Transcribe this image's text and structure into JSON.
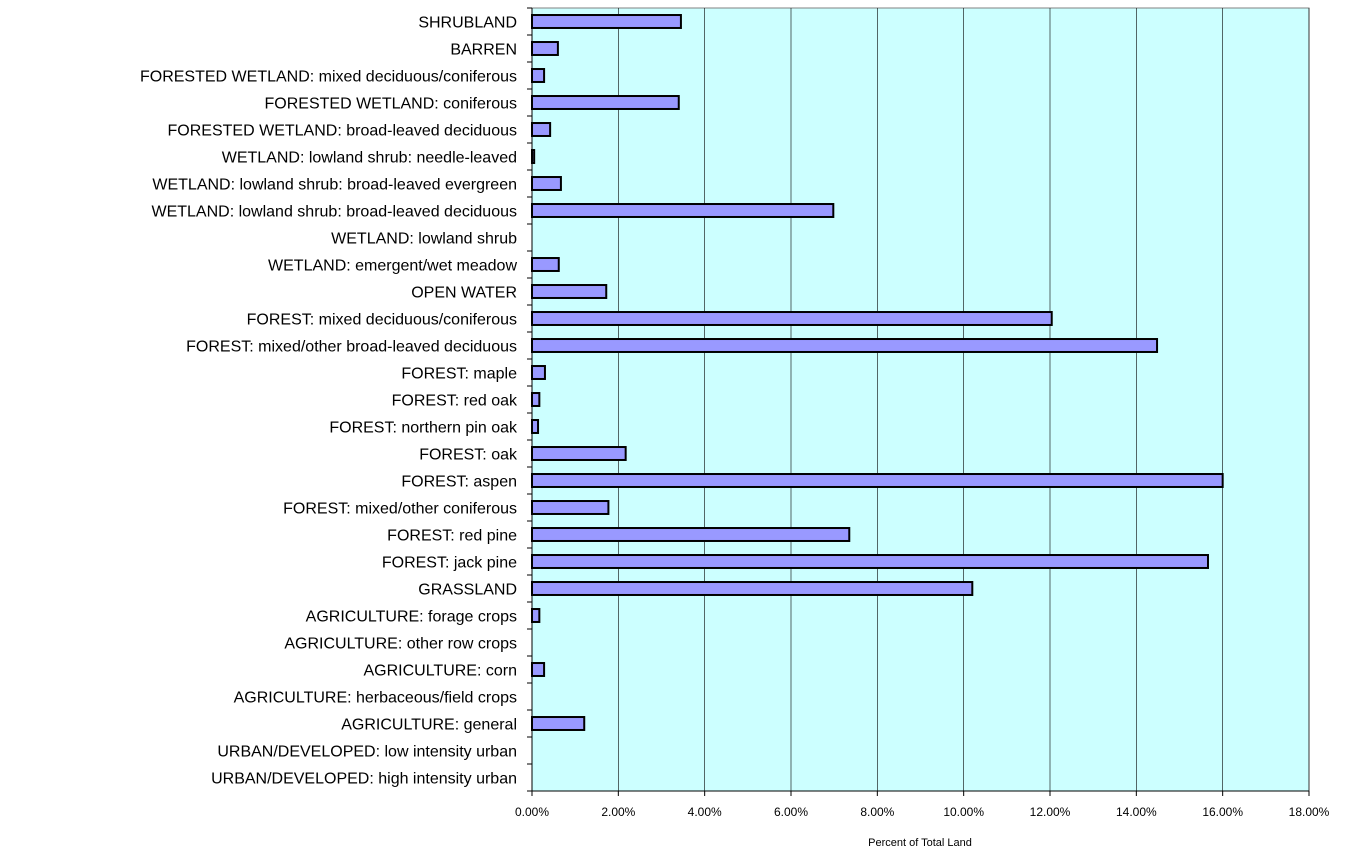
{
  "chart_data": {
    "type": "bar",
    "orientation": "horizontal",
    "title": "",
    "xlabel": "Percent of Total Land",
    "ylabel": "",
    "xlim": [
      0,
      18
    ],
    "x_ticks": [
      "0.00%",
      "2.00%",
      "4.00%",
      "6.00%",
      "8.00%",
      "10.00%",
      "12.00%",
      "14.00%",
      "16.00%",
      "18.00%"
    ],
    "grid": "vertical",
    "legend": "none",
    "categories": [
      "SHRUBLAND",
      "BARREN",
      "FORESTED WETLAND: mixed deciduous/coniferous",
      "FORESTED WETLAND: coniferous",
      "FORESTED WETLAND: broad-leaved deciduous",
      "WETLAND: lowland shrub: needle-leaved",
      "WETLAND: lowland shrub: broad-leaved evergreen",
      "WETLAND: lowland shrub: broad-leaved deciduous",
      "WETLAND: lowland shrub",
      "WETLAND: emergent/wet meadow",
      "OPEN WATER",
      "FOREST: mixed deciduous/coniferous",
      "FOREST: mixed/other broad-leaved deciduous",
      "FOREST: maple",
      "FOREST: red oak",
      "FOREST: northern pin oak",
      "FOREST: oak",
      "FOREST: aspen",
      "FOREST: mixed/other coniferous",
      "FOREST: red pine",
      "FOREST: jack pine",
      "GRASSLAND",
      "AGRICULTURE: forage crops",
      "AGRICULTURE: other row crops",
      "AGRICULTURE: corn",
      "AGRICULTURE: herbaceous/field crops",
      "AGRICULTURE: general",
      "URBAN/DEVELOPED: low intensity urban",
      "URBAN/DEVELOPED: high intensity urban"
    ],
    "values": [
      3.45,
      0.6,
      0.28,
      3.4,
      0.42,
      0.05,
      0.67,
      6.98,
      0,
      0.62,
      1.72,
      12.04,
      14.48,
      0.3,
      0.17,
      0.14,
      2.17,
      16.0,
      1.77,
      7.35,
      15.66,
      10.2,
      0.17,
      0,
      0.28,
      0,
      1.21,
      0,
      0
    ]
  },
  "colors": {
    "plot_background": "#ccffff",
    "bar_fill": "#9999ff",
    "bar_stroke": "#000000",
    "gridline": "#000000",
    "axis_frame": "#808080"
  }
}
